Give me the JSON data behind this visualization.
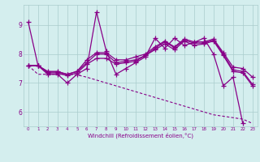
{
  "xlabel": "Windchill (Refroidissement éolien,°C)",
  "bg_color": "#d4eeee",
  "line_color": "#880088",
  "grid_color": "#aacccc",
  "xlim": [
    -0.5,
    23.5
  ],
  "ylim": [
    5.5,
    9.7
  ],
  "yticks": [
    6,
    7,
    8,
    9
  ],
  "xticks": [
    0,
    1,
    2,
    3,
    4,
    5,
    6,
    7,
    8,
    9,
    10,
    11,
    12,
    13,
    14,
    15,
    16,
    17,
    18,
    19,
    20,
    21,
    22,
    23
  ],
  "series": [
    [
      9.1,
      7.6,
      7.3,
      7.3,
      7.0,
      7.3,
      7.5,
      9.45,
      8.1,
      7.3,
      7.5,
      7.7,
      7.9,
      8.55,
      8.2,
      8.55,
      8.3,
      8.4,
      8.55,
      8.0,
      6.9,
      7.2,
      5.6
    ],
    [
      7.6,
      7.6,
      7.35,
      7.35,
      7.25,
      7.35,
      7.65,
      7.85,
      7.85,
      7.65,
      7.7,
      7.75,
      7.95,
      8.15,
      8.35,
      8.15,
      8.45,
      8.3,
      8.35,
      8.45,
      7.95,
      7.4,
      7.35,
      6.9
    ],
    [
      7.6,
      7.6,
      7.38,
      7.38,
      7.3,
      7.4,
      7.7,
      8.0,
      8.0,
      7.7,
      7.75,
      7.8,
      7.95,
      8.2,
      8.42,
      8.22,
      8.48,
      8.38,
      8.38,
      8.48,
      8.0,
      7.45,
      7.4,
      6.95
    ],
    [
      7.6,
      7.6,
      7.4,
      7.4,
      7.3,
      7.4,
      7.8,
      8.05,
      8.05,
      7.8,
      7.8,
      7.9,
      8.0,
      8.25,
      8.45,
      8.25,
      8.52,
      8.42,
      8.42,
      8.52,
      8.05,
      7.55,
      7.5,
      7.2
    ],
    [
      7.6,
      7.3,
      7.3,
      7.3,
      7.3,
      7.28,
      7.2,
      7.1,
      7.0,
      6.9,
      6.8,
      6.7,
      6.6,
      6.5,
      6.4,
      6.3,
      6.2,
      6.1,
      6.0,
      5.9,
      5.85,
      5.8,
      5.75,
      5.6
    ]
  ],
  "series_styles": [
    {
      "lw": 0.9,
      "marker": "+",
      "ms": 4,
      "dashes": []
    },
    {
      "lw": 0.9,
      "marker": "+",
      "ms": 4,
      "dashes": []
    },
    {
      "lw": 0.9,
      "marker": "+",
      "ms": 4,
      "dashes": []
    },
    {
      "lw": 0.9,
      "marker": "+",
      "ms": 4,
      "dashes": []
    },
    {
      "lw": 0.8,
      "marker": null,
      "ms": 0,
      "dashes": [
        3,
        2
      ]
    }
  ]
}
